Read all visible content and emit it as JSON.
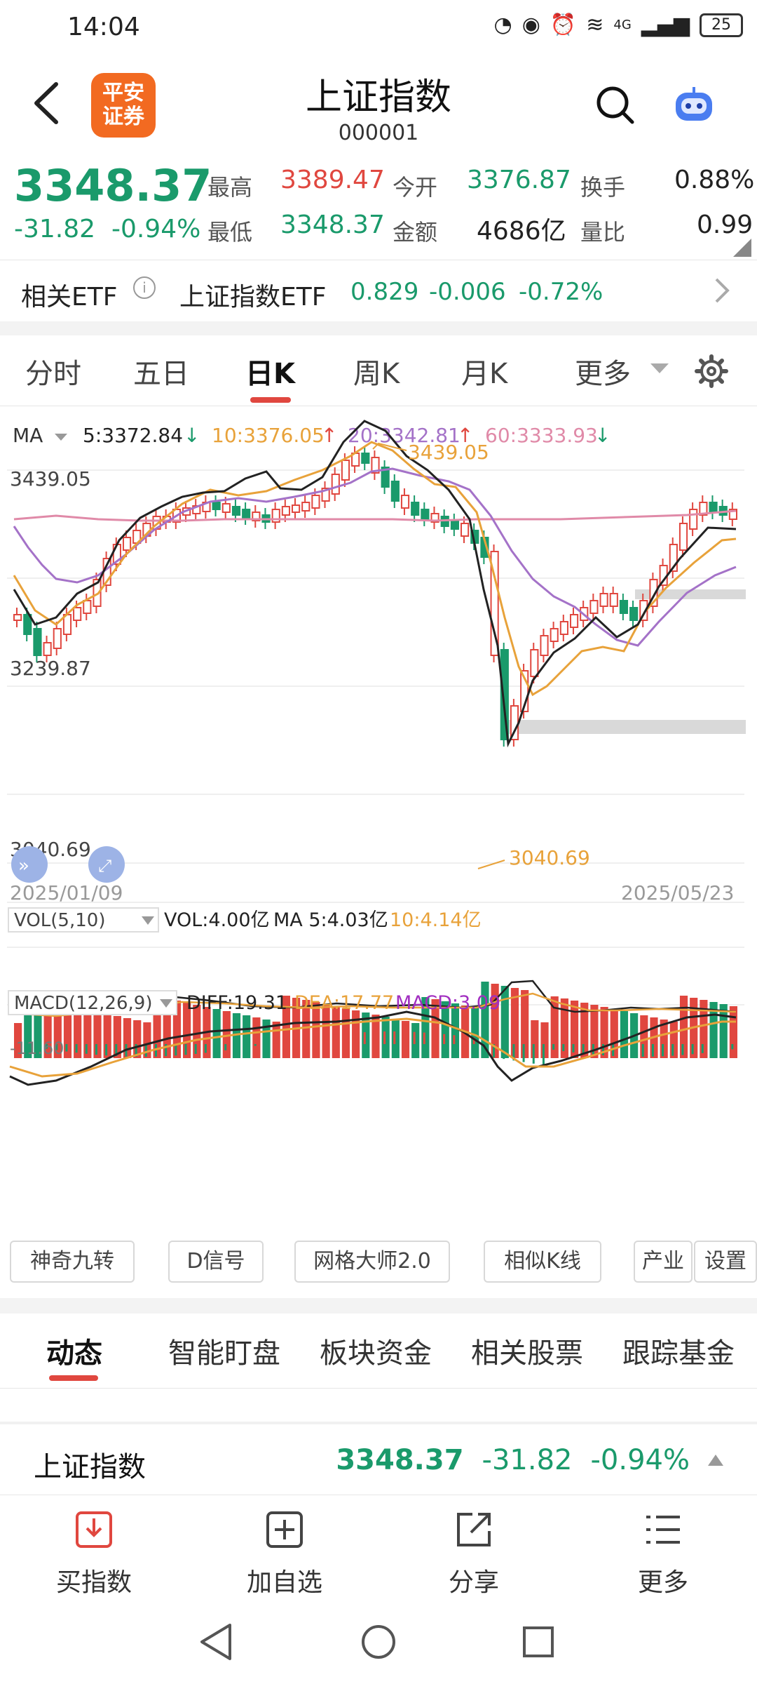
{
  "status_bar": {
    "time": "14:04",
    "network": "4G",
    "battery": "25"
  },
  "header": {
    "logo_text_1": "平安",
    "logo_text_2": "证券",
    "title": "上证指数",
    "code": "000001"
  },
  "quote": {
    "price": "3348.37",
    "change": "-31.82",
    "change_pct": "-0.94%",
    "high_label": "最高",
    "high": "3389.47",
    "open_label": "今开",
    "open": "3376.87",
    "turnover_label": "换手",
    "turnover": "0.88%",
    "low_label": "最低",
    "low": "3348.37",
    "amount_label": "金额",
    "amount": "4686亿",
    "volume_ratio_label": "量比",
    "volume_ratio": "0.99"
  },
  "etf": {
    "label": "相关ETF",
    "name": "上证指数ETF",
    "price": "0.829",
    "change": "-0.006",
    "change_pct": "-0.72%"
  },
  "tabs": [
    {
      "label": "分时"
    },
    {
      "label": "五日"
    },
    {
      "label": "日K"
    },
    {
      "label": "周K"
    },
    {
      "label": "月K"
    },
    {
      "label": "更多"
    }
  ],
  "chart": {
    "ma_label": "MA",
    "ma5": "5:3372.84",
    "ma10": "10:3376.05",
    "ma20": "20:3342.81",
    "ma60": "60:3333.93",
    "y_top": "3439.05",
    "y_mid": "3239.87",
    "y_bottom": "3040.69",
    "high_marker": "3439.05",
    "low_marker": "3040.69",
    "date_start": "2025/01/09",
    "date_end": "2025/05/23",
    "vol_label": "VOL(5,10)",
    "vol_value": "VOL:4.00亿",
    "vol_ma5": "MA 5:4.03亿",
    "vol_ma10": "10:4.14亿",
    "macd_label": "MACD(12,26,9)",
    "diff": "DIFF:19.31",
    "dea": "DEA:17.77",
    "macd": "MACD:3.09",
    "macd_axis": "-11.60",
    "colors": {
      "up": "#e0473f",
      "down": "#1a9a6b",
      "ma5": "#222222",
      "ma10": "#e8a23a",
      "ma20": "#a472c8",
      "ma60": "#e08aa8"
    }
  },
  "tools": [
    {
      "label": "神奇九转"
    },
    {
      "label": "D信号"
    },
    {
      "label": "网格大师2.0"
    },
    {
      "label": "相似K线"
    },
    {
      "label": "产业"
    },
    {
      "label": "设置"
    }
  ],
  "bottom_tabs": [
    {
      "label": "动态"
    },
    {
      "label": "智能盯盘"
    },
    {
      "label": "板块资金"
    },
    {
      "label": "相关股票"
    },
    {
      "label": "跟踪基金"
    }
  ],
  "bottom_quote": {
    "name": "上证指数",
    "price": "3348.37",
    "change": "-31.82",
    "change_pct": "-0.94%"
  },
  "actions": [
    {
      "label": "买指数",
      "icon": "download-box-icon"
    },
    {
      "label": "加自选",
      "icon": "plus-box-icon"
    },
    {
      "label": "分享",
      "icon": "share-icon"
    },
    {
      "label": "更多",
      "icon": "menu-icon"
    }
  ]
}
